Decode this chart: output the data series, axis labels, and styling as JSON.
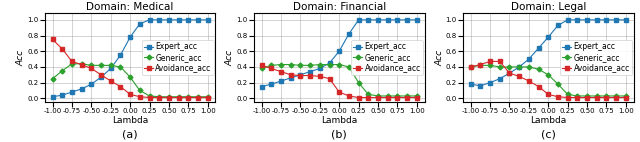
{
  "lambda": [
    -1.0,
    -0.875,
    -0.75,
    -0.625,
    -0.5,
    -0.375,
    -0.25,
    -0.125,
    0.0,
    0.125,
    0.25,
    0.375,
    0.5,
    0.625,
    0.75,
    0.875,
    1.0
  ],
  "medical": {
    "title": "Domain: Medical",
    "expert_acc": [
      0.02,
      0.04,
      0.08,
      0.12,
      0.18,
      0.27,
      0.38,
      0.55,
      0.78,
      0.95,
      1.0,
      1.0,
      1.0,
      1.0,
      1.0,
      1.0,
      1.0
    ],
    "generic_acc": [
      0.25,
      0.35,
      0.44,
      0.44,
      0.42,
      0.42,
      0.42,
      0.4,
      0.27,
      0.1,
      0.03,
      0.02,
      0.02,
      0.02,
      0.02,
      0.02,
      0.02
    ],
    "avoidance_acc": [
      0.75,
      0.63,
      0.47,
      0.43,
      0.38,
      0.3,
      0.22,
      0.15,
      0.05,
      0.02,
      0.01,
      0.01,
      0.01,
      0.01,
      0.01,
      0.01,
      0.01
    ]
  },
  "financial": {
    "title": "Domain: Financial",
    "expert_acc": [
      0.15,
      0.18,
      0.22,
      0.26,
      0.3,
      0.34,
      0.38,
      0.45,
      0.6,
      0.82,
      1.0,
      1.0,
      1.0,
      1.0,
      1.0,
      1.0,
      1.0
    ],
    "generic_acc": [
      0.38,
      0.42,
      0.43,
      0.43,
      0.42,
      0.42,
      0.43,
      0.43,
      0.43,
      0.4,
      0.2,
      0.05,
      0.03,
      0.03,
      0.03,
      0.03,
      0.03
    ],
    "avoidance_acc": [
      0.42,
      0.38,
      0.34,
      0.3,
      0.29,
      0.29,
      0.28,
      0.25,
      0.08,
      0.03,
      0.01,
      0.01,
      0.01,
      0.01,
      0.01,
      0.01,
      0.01
    ]
  },
  "legal": {
    "title": "Domain: Legal",
    "expert_acc": [
      0.18,
      0.16,
      0.2,
      0.25,
      0.32,
      0.4,
      0.5,
      0.64,
      0.78,
      0.93,
      1.0,
      1.0,
      1.0,
      1.0,
      1.0,
      1.0,
      1.0
    ],
    "generic_acc": [
      0.4,
      0.42,
      0.42,
      0.4,
      0.4,
      0.4,
      0.4,
      0.37,
      0.3,
      0.18,
      0.05,
      0.03,
      0.03,
      0.03,
      0.03,
      0.03,
      0.03
    ],
    "avoidance_acc": [
      0.4,
      0.43,
      0.47,
      0.47,
      0.32,
      0.28,
      0.22,
      0.15,
      0.05,
      0.02,
      0.01,
      0.01,
      0.01,
      0.01,
      0.01,
      0.01,
      0.01
    ]
  },
  "colors": {
    "expert": "#1f77b4",
    "generic": "#2ca02c",
    "avoidance": "#d62728"
  },
  "xlabel": "Lambda",
  "ylabel": "Acc",
  "xlim": [
    -1.1,
    1.1
  ],
  "ylim": [
    -0.05,
    1.09
  ],
  "yticks": [
    0.0,
    0.2,
    0.4,
    0.6,
    0.8,
    1.0
  ],
  "xtick_labels": [
    "-1.00",
    "-0.75",
    "-0.50",
    "-0.25",
    "0.00",
    "0.25",
    "0.50",
    "0.75",
    "1.00"
  ],
  "xtick_vals": [
    -1.0,
    -0.75,
    -0.5,
    -0.25,
    0.0,
    0.25,
    0.5,
    0.75,
    1.0
  ],
  "subcaptions": [
    "(a)",
    "(b)",
    "(c)"
  ],
  "legend_fontsize": 5.5,
  "tick_fontsize": 5.0,
  "axis_label_fontsize": 6.5,
  "title_fontsize": 7.5
}
